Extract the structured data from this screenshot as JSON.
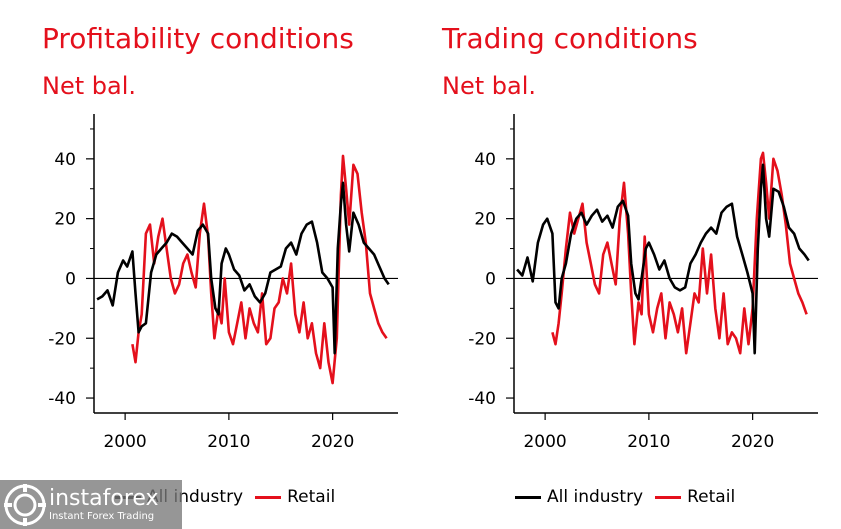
{
  "colors": {
    "title": "#e4101c",
    "all_industry": "#000000",
    "retail": "#e4101c"
  },
  "charts": [
    {
      "title": "Profitability conditions",
      "subtitle": "Net bal."
    },
    {
      "title": "Trading conditions",
      "subtitle": "Net bal."
    }
  ],
  "legend": {
    "all_industry": "All industry",
    "retail": "Retail"
  },
  "watermark": {
    "brand": "instaforex",
    "tagline": "Instant Forex Trading",
    "icon": "instaforex-logo-icon"
  },
  "chart_data": [
    {
      "type": "line",
      "title": "Profitability conditions",
      "ylabel": "Net bal.",
      "xlim": [
        1997,
        2026.3
      ],
      "ylim": [
        -45,
        55
      ],
      "yticks": [
        -40,
        -20,
        0,
        20,
        40
      ],
      "xticks": [
        2000,
        2010,
        2020
      ],
      "series": [
        {
          "name": "All industry",
          "x": [
            1997.3,
            1997.8,
            1998.3,
            1998.8,
            1999.3,
            1999.8,
            2000.2,
            2000.7,
            2001.0,
            2001.3,
            2001.6,
            2002.0,
            2002.5,
            2003.0,
            2003.5,
            2004.0,
            2004.5,
            2005.0,
            2005.5,
            2006.0,
            2006.5,
            2007.0,
            2007.5,
            2008.0,
            2008.3,
            2008.7,
            2009.0,
            2009.3,
            2009.7,
            2010.0,
            2010.5,
            2011.0,
            2011.5,
            2012.0,
            2012.5,
            2013.0,
            2013.5,
            2014.0,
            2014.5,
            2015.0,
            2015.5,
            2016.0,
            2016.5,
            2017.0,
            2017.5,
            2018.0,
            2018.5,
            2019.0,
            2019.5,
            2020.0,
            2020.2,
            2020.5,
            2020.8,
            2021.0,
            2021.3,
            2021.6,
            2022.0,
            2022.5,
            2023.0,
            2023.5,
            2024.0,
            2024.5,
            2025.0,
            2025.4
          ],
          "y": [
            -7,
            -6,
            -4,
            -9,
            2,
            6,
            4,
            9,
            -5,
            -18,
            -16,
            -15,
            2,
            8,
            10,
            12,
            15,
            14,
            12,
            10,
            8,
            16,
            18,
            15,
            0,
            -10,
            -12,
            5,
            10,
            8,
            3,
            1,
            -4,
            -2,
            -6,
            -8,
            -5,
            2,
            3,
            4,
            10,
            12,
            8,
            15,
            18,
            19,
            12,
            2,
            0,
            -3,
            -25,
            10,
            25,
            32,
            18,
            9,
            22,
            18,
            12,
            10,
            8,
            4,
            0,
            -2
          ]
        },
        {
          "name": "Retail",
          "x": [
            2000.7,
            2001.0,
            2001.3,
            2001.6,
            2002.0,
            2002.4,
            2002.8,
            2003.2,
            2003.6,
            2004.0,
            2004.4,
            2004.8,
            2005.2,
            2005.6,
            2006.0,
            2006.4,
            2006.8,
            2007.2,
            2007.6,
            2008.0,
            2008.3,
            2008.6,
            2009.0,
            2009.3,
            2009.6,
            2010.0,
            2010.4,
            2010.8,
            2011.2,
            2011.6,
            2012.0,
            2012.4,
            2012.8,
            2013.2,
            2013.6,
            2014.0,
            2014.4,
            2014.8,
            2015.2,
            2015.6,
            2016.0,
            2016.4,
            2016.8,
            2017.2,
            2017.6,
            2018.0,
            2018.4,
            2018.8,
            2019.2,
            2019.6,
            2020.0,
            2020.4,
            2020.8,
            2021.0,
            2021.3,
            2021.6,
            2022.0,
            2022.4,
            2022.8,
            2023.2,
            2023.6,
            2024.0,
            2024.4,
            2024.8,
            2025.2
          ],
          "y": [
            -22,
            -28,
            -18,
            -12,
            15,
            18,
            5,
            14,
            20,
            10,
            0,
            -5,
            -2,
            5,
            8,
            2,
            -3,
            15,
            25,
            14,
            -5,
            -20,
            -10,
            -15,
            0,
            -18,
            -22,
            -15,
            -8,
            -20,
            -10,
            -15,
            -18,
            -5,
            -22,
            -20,
            -10,
            -8,
            0,
            -5,
            5,
            -12,
            -18,
            -8,
            -20,
            -15,
            -25,
            -30,
            -15,
            -28,
            -35,
            -20,
            28,
            41,
            30,
            18,
            38,
            35,
            22,
            12,
            -5,
            -10,
            -15,
            -18,
            -20
          ]
        }
      ]
    },
    {
      "type": "line",
      "title": "Trading conditions",
      "ylabel": "Net bal.",
      "xlim": [
        1997,
        2026.3
      ],
      "ylim": [
        -45,
        55
      ],
      "yticks": [
        -40,
        -20,
        0,
        20,
        40
      ],
      "xticks": [
        2000,
        2010,
        2020
      ],
      "series": [
        {
          "name": "All industry",
          "x": [
            1997.3,
            1997.8,
            1998.3,
            1998.8,
            1999.3,
            1999.8,
            2000.2,
            2000.7,
            2001.0,
            2001.3,
            2001.6,
            2002.0,
            2002.5,
            2003.0,
            2003.5,
            2004.0,
            2004.5,
            2005.0,
            2005.5,
            2006.0,
            2006.5,
            2007.0,
            2007.5,
            2008.0,
            2008.3,
            2008.7,
            2009.0,
            2009.3,
            2009.7,
            2010.0,
            2010.5,
            2011.0,
            2011.5,
            2012.0,
            2012.5,
            2013.0,
            2013.5,
            2014.0,
            2014.5,
            2015.0,
            2015.5,
            2016.0,
            2016.5,
            2017.0,
            2017.5,
            2018.0,
            2018.5,
            2019.0,
            2019.5,
            2020.0,
            2020.2,
            2020.5,
            2020.8,
            2021.0,
            2021.3,
            2021.6,
            2022.0,
            2022.5,
            2023.0,
            2023.5,
            2024.0,
            2024.5,
            2025.0,
            2025.4
          ],
          "y": [
            3,
            1,
            7,
            -1,
            12,
            18,
            20,
            15,
            -8,
            -10,
            0,
            5,
            15,
            20,
            22,
            18,
            21,
            23,
            19,
            21,
            17,
            24,
            26,
            21,
            5,
            -5,
            -7,
            0,
            10,
            12,
            8,
            3,
            6,
            0,
            -3,
            -4,
            -3,
            5,
            8,
            12,
            15,
            17,
            15,
            22,
            24,
            25,
            14,
            8,
            2,
            -5,
            -25,
            10,
            30,
            38,
            20,
            14,
            30,
            29,
            24,
            17,
            15,
            10,
            8,
            6
          ]
        },
        {
          "name": "Retail",
          "x": [
            2000.7,
            2001.0,
            2001.3,
            2001.6,
            2002.0,
            2002.4,
            2002.8,
            2003.2,
            2003.6,
            2004.0,
            2004.4,
            2004.8,
            2005.2,
            2005.6,
            2006.0,
            2006.4,
            2006.8,
            2007.2,
            2007.6,
            2008.0,
            2008.3,
            2008.6,
            2009.0,
            2009.3,
            2009.6,
            2010.0,
            2010.4,
            2010.8,
            2011.2,
            2011.6,
            2012.0,
            2012.4,
            2012.8,
            2013.2,
            2013.6,
            2014.0,
            2014.4,
            2014.8,
            2015.2,
            2015.6,
            2016.0,
            2016.4,
            2016.8,
            2017.2,
            2017.6,
            2018.0,
            2018.4,
            2018.8,
            2019.2,
            2019.6,
            2020.0,
            2020.4,
            2020.8,
            2021.0,
            2021.3,
            2021.6,
            2022.0,
            2022.4,
            2022.8,
            2023.2,
            2023.6,
            2024.0,
            2024.4,
            2024.8,
            2025.2
          ],
          "y": [
            -18,
            -22,
            -15,
            -5,
            10,
            22,
            15,
            20,
            25,
            12,
            5,
            -2,
            -5,
            8,
            12,
            5,
            -2,
            20,
            32,
            15,
            -5,
            -22,
            -8,
            -12,
            14,
            -12,
            -18,
            -10,
            -5,
            -20,
            -8,
            -12,
            -18,
            -10,
            -25,
            -15,
            -5,
            -8,
            10,
            -5,
            8,
            -10,
            -20,
            -5,
            -22,
            -18,
            -20,
            -25,
            -10,
            -22,
            -10,
            20,
            40,
            42,
            32,
            20,
            40,
            36,
            28,
            18,
            5,
            0,
            -5,
            -8,
            -12
          ]
        }
      ]
    }
  ]
}
